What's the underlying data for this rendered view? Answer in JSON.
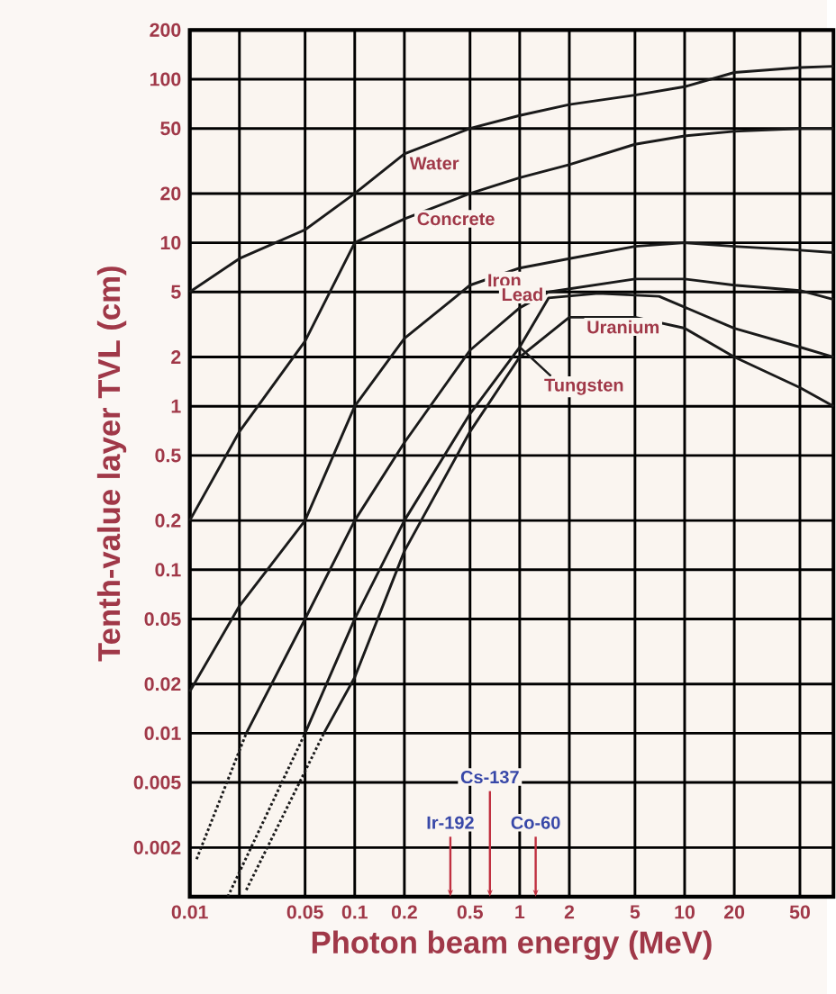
{
  "chart_data": {
    "type": "line",
    "xlabel": "Photon beam energy  (MeV)",
    "ylabel": "Tenth-value layer TVL  (cm)",
    "log": "xy",
    "grid": true,
    "xlim": [
      0.01,
      80
    ],
    "ylim": [
      0.001,
      200
    ],
    "xticks": [
      0.01,
      {
        "value": 0.02,
        "label": null
      },
      0.05,
      0.1,
      0.2,
      0.5,
      1,
      2,
      5,
      10,
      20,
      50
    ],
    "yticks": [
      0.002,
      0.005,
      0.01,
      0.02,
      0.05,
      0.1,
      0.2,
      0.5,
      1,
      2,
      5,
      10,
      20,
      50,
      100,
      200
    ],
    "series": [
      {
        "name": "Water",
        "color": "#1a1a1a",
        "x": [
          0.01,
          0.02,
          0.05,
          0.1,
          0.2,
          0.5,
          1,
          2,
          5,
          10,
          20,
          50,
          80
        ],
        "values": [
          5,
          8,
          12,
          20,
          35,
          50,
          60,
          70,
          80,
          90,
          110,
          118,
          120
        ]
      },
      {
        "name": "Concrete",
        "color": "#1a1a1a",
        "x": [
          0.01,
          0.02,
          0.05,
          0.1,
          0.2,
          0.5,
          1,
          2,
          5,
          10,
          20,
          50,
          80
        ],
        "values": [
          0.2,
          0.7,
          2.5,
          10,
          14,
          20,
          25,
          30,
          40,
          45,
          48,
          50,
          50
        ]
      },
      {
        "name": "Iron",
        "color": "#1a1a1a",
        "x": [
          0.01,
          0.02,
          0.05,
          0.1,
          0.2,
          0.5,
          1,
          2,
          5,
          10,
          20,
          50,
          80
        ],
        "values": [
          0.018,
          0.06,
          0.2,
          1,
          2.6,
          5.5,
          7,
          8,
          9.5,
          10,
          9.5,
          9,
          8.7
        ]
      },
      {
        "name": "Lead",
        "color": "#1a1a1a",
        "x": [
          0.022,
          0.05,
          0.1,
          0.2,
          0.5,
          1,
          1.5,
          5,
          10,
          20,
          50,
          80
        ],
        "values": [
          0.01,
          0.05,
          0.2,
          0.6,
          2.2,
          4,
          5,
          6,
          6,
          5.5,
          5.1,
          4.5
        ]
      },
      {
        "name": "Tungsten",
        "color": "#1a1a1a",
        "x": [
          0.05,
          0.1,
          0.2,
          0.5,
          1,
          1.5,
          3,
          7,
          20,
          50,
          80
        ],
        "values": [
          0.01,
          0.05,
          0.2,
          0.9,
          2.3,
          4.6,
          4.9,
          4.7,
          3,
          2.3,
          2
        ]
      },
      {
        "name": "Uranium",
        "color": "#1a1a1a",
        "x": [
          0.065,
          0.1,
          0.2,
          0.5,
          1,
          2,
          5,
          10,
          20,
          50,
          80
        ],
        "values": [
          0.01,
          0.022,
          0.13,
          0.7,
          2,
          3.5,
          3.5,
          3,
          2,
          1.3,
          1
        ]
      },
      {
        "color": "#1a1a1a",
        "line_style": "dotted",
        "x": [
          0.011,
          0.022
        ],
        "values": [
          0.0017,
          0.01
        ]
      },
      {
        "color": "#1a1a1a",
        "line_style": "dotted",
        "x": [
          0.017,
          0.05
        ],
        "values": [
          0.001,
          0.01
        ]
      },
      {
        "color": "#1a1a1a",
        "line_style": "dotted",
        "x": [
          0.022,
          0.065
        ],
        "values": [
          0.0011,
          0.01
        ]
      }
    ],
    "ref_lines": [
      {
        "axis": "x",
        "value": 0.38,
        "label": "Ir-192",
        "color": "#c03040"
      },
      {
        "axis": "x",
        "value": 0.66,
        "label": "Cs-137",
        "color": "#c03040"
      },
      {
        "axis": "x",
        "value": 1.25,
        "label": "Co-60",
        "color": "#c03040"
      }
    ]
  }
}
